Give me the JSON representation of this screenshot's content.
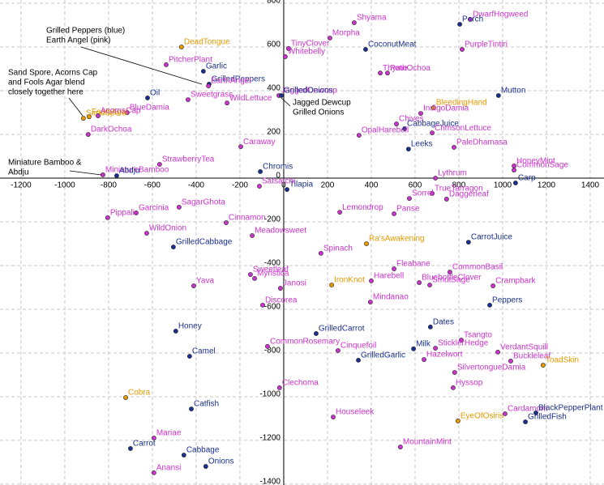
{
  "chart_data": {
    "type": "scatter",
    "xlim": [
      -1296,
      1463
    ],
    "ylim": [
      -1404,
      815
    ],
    "xticks": [
      -1200,
      -1000,
      -800,
      -600,
      -400,
      -200,
      0,
      200,
      400,
      600,
      800,
      1000,
      1200,
      1400
    ],
    "yticks": [
      800,
      600,
      400,
      200,
      0,
      -200,
      -400,
      -600,
      -800,
      -1000,
      -1200,
      -1400
    ],
    "grid": true,
    "points": [
      {
        "label": "Shyama",
        "x": 322,
        "y": 711,
        "color": "#cc33cc"
      },
      {
        "label": "DwarfHogweed",
        "x": 852,
        "y": 726,
        "color": "#cc33cc"
      },
      {
        "label": "Perch",
        "x": 804,
        "y": 704,
        "color": "#1a2f8f"
      },
      {
        "label": "Morpha",
        "x": 211,
        "y": 641,
        "color": "#cc33cc"
      },
      {
        "label": "CoconutMeat",
        "x": 374,
        "y": 589,
        "color": "#1a2f8f"
      },
      {
        "label": "PurpleTintiri",
        "x": 815,
        "y": 589,
        "color": "#cc33cc"
      },
      {
        "label": "DeadTongue",
        "x": -467,
        "y": 600,
        "color": "#e69a00"
      },
      {
        "label": "TinyClover",
        "x": 22,
        "y": 593,
        "color": "#cc33cc"
      },
      {
        "label": "Whitebelly",
        "x": 7,
        "y": 556,
        "color": "#cc33cc"
      },
      {
        "label": "PitcherPlant",
        "x": -537,
        "y": 519,
        "color": "#cc33cc"
      },
      {
        "label": "Garlic",
        "x": -367,
        "y": 489,
        "color": "#1a2f8f"
      },
      {
        "label": "PathOchoa",
        "x": 474,
        "y": 481,
        "color": "#cc33cc"
      },
      {
        "label": "Thyme",
        "x": 441,
        "y": 481,
        "color": "#cc33cc"
      },
      {
        "label": "GrilledPeppers",
        "x": -341,
        "y": 430,
        "color": "#1a2f8f"
      },
      {
        "label": "EarthAngel",
        "x": -344,
        "y": 422,
        "color": "#cc33cc"
      },
      {
        "label": "JaggedDewcup",
        "x": -22,
        "y": 378,
        "color": "#cc33cc"
      },
      {
        "label": "GrilledOnions",
        "x": -11,
        "y": 378,
        "color": "#1a2f8f"
      },
      {
        "label": "Oil",
        "x": -622,
        "y": 367,
        "color": "#1a2f8f"
      },
      {
        "label": "BlueDamia",
        "x": -715,
        "y": 300,
        "color": "#cc33cc"
      },
      {
        "label": "Sweetgrass",
        "x": -437,
        "y": 359,
        "color": "#cc33cc"
      },
      {
        "label": "WildLettuce",
        "x": -259,
        "y": 344,
        "color": "#cc33cc"
      },
      {
        "label": "SandSpore",
        "x": -915,
        "y": 274,
        "color": "#e69a00"
      },
      {
        "label": "FoolsAgar",
        "x": -889,
        "y": 281,
        "color": "#e69a00"
      },
      {
        "label": "AcornsCap",
        "x": -848,
        "y": 285,
        "color": "#cc33cc"
      },
      {
        "label": "Mutton",
        "x": 981,
        "y": 378,
        "color": "#1a2f8f"
      },
      {
        "label": "BleedingHand",
        "x": 685,
        "y": 322,
        "color": "#e69a00"
      },
      {
        "label": "IndigoDamia",
        "x": 626,
        "y": 296,
        "color": "#cc33cc"
      },
      {
        "label": "Chives",
        "x": 515,
        "y": 248,
        "color": "#cc33cc"
      },
      {
        "label": "CabbageJuice",
        "x": 552,
        "y": 226,
        "color": "#1a2f8f"
      },
      {
        "label": "OpalHarebell",
        "x": 344,
        "y": 196,
        "color": "#cc33cc"
      },
      {
        "label": "CrimsonLettuce",
        "x": 678,
        "y": 207,
        "color": "#cc33cc"
      },
      {
        "label": "DarkOchoa",
        "x": -893,
        "y": 200,
        "color": "#cc33cc"
      },
      {
        "label": "Leeks",
        "x": 570,
        "y": 133,
        "color": "#1a2f8f"
      },
      {
        "label": "Caraway",
        "x": -196,
        "y": 144,
        "color": "#cc33cc"
      },
      {
        "label": "PaleDhamasa",
        "x": 778,
        "y": 141,
        "color": "#cc33cc"
      },
      {
        "label": "HoneyMint",
        "x": 1052,
        "y": 56,
        "color": "#cc33cc"
      },
      {
        "label": "CommonSage",
        "x": 1052,
        "y": 37,
        "color": "#cc33cc"
      },
      {
        "label": "Carp",
        "x": 1059,
        "y": -22,
        "color": "#1a2f8f"
      },
      {
        "label": "StrawberryTea",
        "x": -567,
        "y": 63,
        "color": "#cc33cc"
      },
      {
        "label": "MiniatureBamboo",
        "x": -826,
        "y": 15,
        "color": "#cc33cc"
      },
      {
        "label": "Abdju",
        "x": -763,
        "y": 11,
        "color": "#1a2f8f"
      },
      {
        "label": "Chromis",
        "x": -107,
        "y": 30,
        "color": "#1a2f8f"
      },
      {
        "label": "Tilapia",
        "x": 15,
        "y": -52,
        "color": "#1a2f8f"
      },
      {
        "label": "Satsatchi",
        "x": -111,
        "y": -37,
        "color": "#cc33cc"
      },
      {
        "label": "Lythrum",
        "x": 693,
        "y": 0,
        "color": "#cc33cc"
      },
      {
        "label": "TrueTarragon",
        "x": 678,
        "y": -70,
        "color": "#cc33cc"
      },
      {
        "label": "Daggerleaf",
        "x": 744,
        "y": -96,
        "color": "#cc33cc"
      },
      {
        "label": "Sorrel",
        "x": 574,
        "y": -93,
        "color": "#cc33cc"
      },
      {
        "label": "Panse",
        "x": 504,
        "y": -163,
        "color": "#cc33cc"
      },
      {
        "label": "Lemondrop",
        "x": 256,
        "y": -156,
        "color": "#cc33cc"
      },
      {
        "label": "SagarGhota",
        "x": -478,
        "y": -133,
        "color": "#cc33cc"
      },
      {
        "label": "Pippali",
        "x": -804,
        "y": -181,
        "color": "#cc33cc"
      },
      {
        "label": "Garcinia",
        "x": -674,
        "y": -159,
        "color": "#cc33cc"
      },
      {
        "label": "Cinnamon",
        "x": -263,
        "y": -204,
        "color": "#cc33cc"
      },
      {
        "label": "WildOnion",
        "x": -626,
        "y": -252,
        "color": "#cc33cc"
      },
      {
        "label": "Meadowsweet",
        "x": -144,
        "y": -263,
        "color": "#cc33cc"
      },
      {
        "label": "GrilledCabbage",
        "x": -504,
        "y": -315,
        "color": "#1a2f8f"
      },
      {
        "label": "Ra'sAwakening",
        "x": 378,
        "y": -300,
        "color": "#e69a00"
      },
      {
        "label": "CarrotJuice",
        "x": 844,
        "y": -293,
        "color": "#1a2f8f"
      },
      {
        "label": "Spinach",
        "x": 170,
        "y": -344,
        "color": "#cc33cc"
      },
      {
        "label": "Fleabane",
        "x": 504,
        "y": -415,
        "color": "#cc33cc"
      },
      {
        "label": "CommonBasil",
        "x": 759,
        "y": -430,
        "color": "#cc33cc"
      },
      {
        "label": "Harebell",
        "x": 400,
        "y": -470,
        "color": "#cc33cc"
      },
      {
        "label": "BluebottleClover",
        "x": 619,
        "y": -478,
        "color": "#cc33cc"
      },
      {
        "label": "SmutSage",
        "x": 667,
        "y": -489,
        "color": "#cc33cc"
      },
      {
        "label": "Sweetleaf",
        "x": -152,
        "y": -441,
        "color": "#cc33cc"
      },
      {
        "label": "Myristica",
        "x": -133,
        "y": -459,
        "color": "#cc33cc"
      },
      {
        "label": "IronKnot",
        "x": 219,
        "y": -489,
        "color": "#e69a00"
      },
      {
        "label": "Crampbark",
        "x": 956,
        "y": -493,
        "color": "#cc33cc"
      },
      {
        "label": "Yava",
        "x": -411,
        "y": -493,
        "color": "#cc33cc"
      },
      {
        "label": "Janosi",
        "x": -15,
        "y": -504,
        "color": "#cc33cc"
      },
      {
        "label": "Discorea",
        "x": -96,
        "y": -581,
        "color": "#cc33cc"
      },
      {
        "label": "Mindanao",
        "x": 396,
        "y": -567,
        "color": "#cc33cc"
      },
      {
        "label": "Peppers",
        "x": 941,
        "y": -581,
        "color": "#1a2f8f"
      },
      {
        "label": "Dates",
        "x": 670,
        "y": -681,
        "color": "#1a2f8f"
      },
      {
        "label": "Honey",
        "x": -493,
        "y": -700,
        "color": "#1a2f8f"
      },
      {
        "label": "GrilledCarrot",
        "x": 148,
        "y": -711,
        "color": "#1a2f8f"
      },
      {
        "label": "Tsangto",
        "x": 811,
        "y": -741,
        "color": "#cc33cc"
      },
      {
        "label": "SticklerHedge",
        "x": 693,
        "y": -778,
        "color": "#cc33cc"
      },
      {
        "label": "Milk",
        "x": 593,
        "y": -781,
        "color": "#1a2f8f"
      },
      {
        "label": "CommonRosemary",
        "x": -74,
        "y": -770,
        "color": "#cc33cc"
      },
      {
        "label": "Cinquefoil",
        "x": 248,
        "y": -789,
        "color": "#cc33cc"
      },
      {
        "label": "VerdantSquill",
        "x": 978,
        "y": -796,
        "color": "#cc33cc"
      },
      {
        "label": "Camel",
        "x": -430,
        "y": -815,
        "color": "#1a2f8f"
      },
      {
        "label": "GrilledGarlic",
        "x": 341,
        "y": -833,
        "color": "#1a2f8f"
      },
      {
        "label": "Hazelwort",
        "x": 641,
        "y": -830,
        "color": "#cc33cc"
      },
      {
        "label": "Buckleleaf",
        "x": 1037,
        "y": -837,
        "color": "#cc33cc"
      },
      {
        "label": "ToadSkin",
        "x": 1185,
        "y": -856,
        "color": "#e69a00"
      },
      {
        "label": "SilvertongueDamia",
        "x": 781,
        "y": -889,
        "color": "#cc33cc"
      },
      {
        "label": "Hyssop",
        "x": 774,
        "y": -959,
        "color": "#cc33cc"
      },
      {
        "label": "Clechoma",
        "x": -19,
        "y": -959,
        "color": "#cc33cc"
      },
      {
        "label": "Cobra",
        "x": -722,
        "y": -1004,
        "color": "#e69a00"
      },
      {
        "label": "Catfish",
        "x": -422,
        "y": -1056,
        "color": "#1a2f8f"
      },
      {
        "label": "Houseleek",
        "x": 226,
        "y": -1093,
        "color": "#cc33cc"
      },
      {
        "label": "EyeOfOsiris",
        "x": 796,
        "y": -1111,
        "color": "#e69a00"
      },
      {
        "label": "Cardamom",
        "x": 1011,
        "y": -1078,
        "color": "#cc33cc"
      },
      {
        "label": "BlackPepperPlant",
        "x": 1152,
        "y": -1074,
        "color": "#1a2f8f"
      },
      {
        "label": "GrilledFish",
        "x": 1104,
        "y": -1115,
        "color": "#1a2f8f"
      },
      {
        "label": "Mariae",
        "x": -593,
        "y": -1189,
        "color": "#cc33cc"
      },
      {
        "label": "Carrot",
        "x": -700,
        "y": -1237,
        "color": "#1a2f8f"
      },
      {
        "label": "MountainMint",
        "x": 533,
        "y": -1230,
        "color": "#cc33cc"
      },
      {
        "label": "Cabbage",
        "x": -456,
        "y": -1267,
        "color": "#1a2f8f"
      },
      {
        "label": "Onions",
        "x": -356,
        "y": -1319,
        "color": "#1a2f8f"
      },
      {
        "label": "Anansi",
        "x": -593,
        "y": -1348,
        "color": "#cc33cc"
      }
    ],
    "annotations": [
      {
        "text": [
          "Grilled Peppers (blue)",
          "Earth Angel (pink)"
        ]
      },
      {
        "text": [
          "Sand Spore, Acorns Cap",
          "and Fools Agar blend",
          "closely together here"
        ]
      },
      {
        "text": [
          "Jagged Dewcup",
          "Grilled Onions"
        ]
      },
      {
        "text": [
          "Miniature Bamboo &",
          "Abdju"
        ]
      }
    ]
  }
}
